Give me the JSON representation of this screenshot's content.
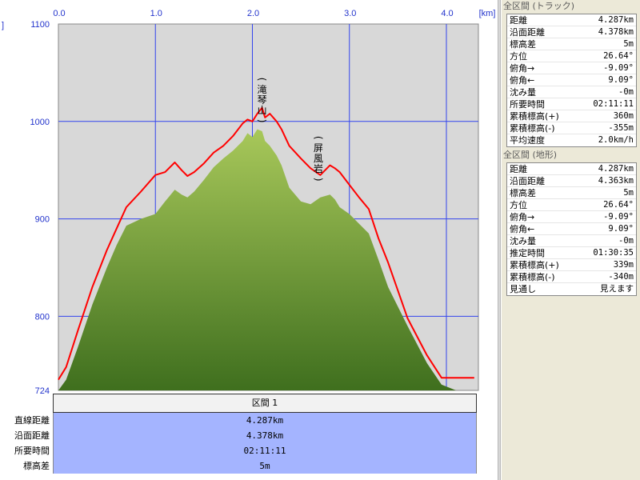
{
  "chart_data": {
    "type": "area",
    "x_unit_label": "[km]",
    "y_unit_label": "]",
    "x_ticks": [
      0.0,
      1.0,
      2.0,
      3.0,
      4.0
    ],
    "x_tick_labels": [
      "0.0",
      "1.0",
      "2.0",
      "3.0",
      "4.0"
    ],
    "y_ticks": [
      724,
      800,
      900,
      1000,
      1100
    ],
    "y_tick_labels": [
      "724",
      "800",
      "900",
      "1000",
      "1100"
    ],
    "xlim": [
      0.0,
      4.287
    ],
    "ylim": [
      724,
      1100
    ],
    "grid": true,
    "series": [
      {
        "role": "track",
        "color": "#ff0000",
        "x": [
          0.0,
          0.08,
          0.2,
          0.35,
          0.5,
          0.6,
          0.7,
          0.85,
          1.0,
          1.1,
          1.2,
          1.27,
          1.33,
          1.4,
          1.5,
          1.6,
          1.7,
          1.8,
          1.9,
          1.95,
          2.0,
          2.05,
          2.1,
          2.13,
          2.18,
          2.25,
          2.3,
          2.38,
          2.5,
          2.6,
          2.7,
          2.8,
          2.85,
          2.9,
          3.0,
          3.1,
          3.2,
          3.3,
          3.4,
          3.6,
          3.8,
          3.95,
          4.1,
          4.2,
          4.287
        ],
        "y": [
          735,
          748,
          785,
          830,
          868,
          890,
          912,
          928,
          945,
          948,
          958,
          950,
          944,
          948,
          957,
          968,
          975,
          985,
          998,
          1002,
          1000,
          1008,
          1014,
          1004,
          1008,
          1000,
          992,
          975,
          962,
          952,
          945,
          955,
          952,
          948,
          935,
          922,
          910,
          880,
          855,
          798,
          760,
          737,
          737,
          737,
          737
        ]
      },
      {
        "role": "terrain",
        "color": "#5f8f2c",
        "x": [
          0.0,
          0.08,
          0.2,
          0.35,
          0.5,
          0.6,
          0.7,
          0.85,
          1.0,
          1.1,
          1.2,
          1.27,
          1.33,
          1.4,
          1.5,
          1.6,
          1.7,
          1.8,
          1.9,
          1.95,
          2.0,
          2.05,
          2.1,
          2.13,
          2.18,
          2.25,
          2.3,
          2.38,
          2.5,
          2.6,
          2.7,
          2.8,
          2.85,
          2.9,
          3.0,
          3.1,
          3.2,
          3.3,
          3.4,
          3.6,
          3.8,
          3.95,
          4.1,
          4.2,
          4.287
        ],
        "y": [
          724,
          735,
          768,
          812,
          850,
          873,
          893,
          900,
          905,
          918,
          930,
          925,
          922,
          928,
          940,
          953,
          962,
          970,
          980,
          988,
          984,
          992,
          990,
          980,
          975,
          965,
          955,
          932,
          918,
          915,
          922,
          925,
          920,
          912,
          905,
          895,
          885,
          858,
          830,
          790,
          752,
          730,
          724,
          724,
          724
        ]
      }
    ],
    "annotations": [
      {
        "text": "(滝琴山)",
        "x": 2.1,
        "y": 1040
      },
      {
        "text": "(屏風岩)",
        "x": 2.68,
        "y": 980
      }
    ]
  },
  "section_table": {
    "header": "区間 1",
    "rows": [
      {
        "label": "直線距離",
        "value": "4.287km"
      },
      {
        "label": "沿面距離",
        "value": "4.378km"
      },
      {
        "label": "所要時間",
        "value": "02:11:11"
      },
      {
        "label": "標高差",
        "value": "5m"
      }
    ]
  },
  "stats_track": {
    "title": "全区間 (トラック)",
    "rows": [
      {
        "label": "距離",
        "value": "4.287km"
      },
      {
        "label": "沿面距離",
        "value": "4.378km"
      },
      {
        "label": "標高差",
        "value": "5m"
      },
      {
        "label": "方位",
        "value": "26.64°"
      },
      {
        "label": "俯角→",
        "value": "-9.09°"
      },
      {
        "label": "俯角←",
        "value": "9.09°"
      },
      {
        "label": "沈み量",
        "value": "-0m"
      },
      {
        "label": "所要時間",
        "value": "02:11:11"
      },
      {
        "label": "累積標高(+)",
        "value": "360m"
      },
      {
        "label": "累積標高(-)",
        "value": "-355m"
      },
      {
        "label": "平均速度",
        "value": "2.0km/h"
      }
    ]
  },
  "stats_terrain": {
    "title": "全区間 (地形)",
    "rows": [
      {
        "label": "距離",
        "value": "4.287km"
      },
      {
        "label": "沿面距離",
        "value": "4.363km"
      },
      {
        "label": "標高差",
        "value": "5m"
      },
      {
        "label": "方位",
        "value": "26.64°"
      },
      {
        "label": "俯角→",
        "value": "-9.09°"
      },
      {
        "label": "俯角←",
        "value": "9.09°"
      },
      {
        "label": "沈み量",
        "value": "-0m"
      },
      {
        "label": "推定時間",
        "value": "01:30:35"
      },
      {
        "label": "累積標高(+)",
        "value": "339m"
      },
      {
        "label": "累積標高(-)",
        "value": "-340m"
      },
      {
        "label": "見通し",
        "value": "見えます"
      }
    ]
  },
  "colors": {
    "plot_bg": "#d8d8d8",
    "grid": "#3344ee",
    "tick_label": "#2233cc",
    "track": "#ff0000",
    "terrain_top": "#a8c85a",
    "terrain_bottom": "#3f6f1e",
    "section_row_bg": "#a4b4ff"
  }
}
